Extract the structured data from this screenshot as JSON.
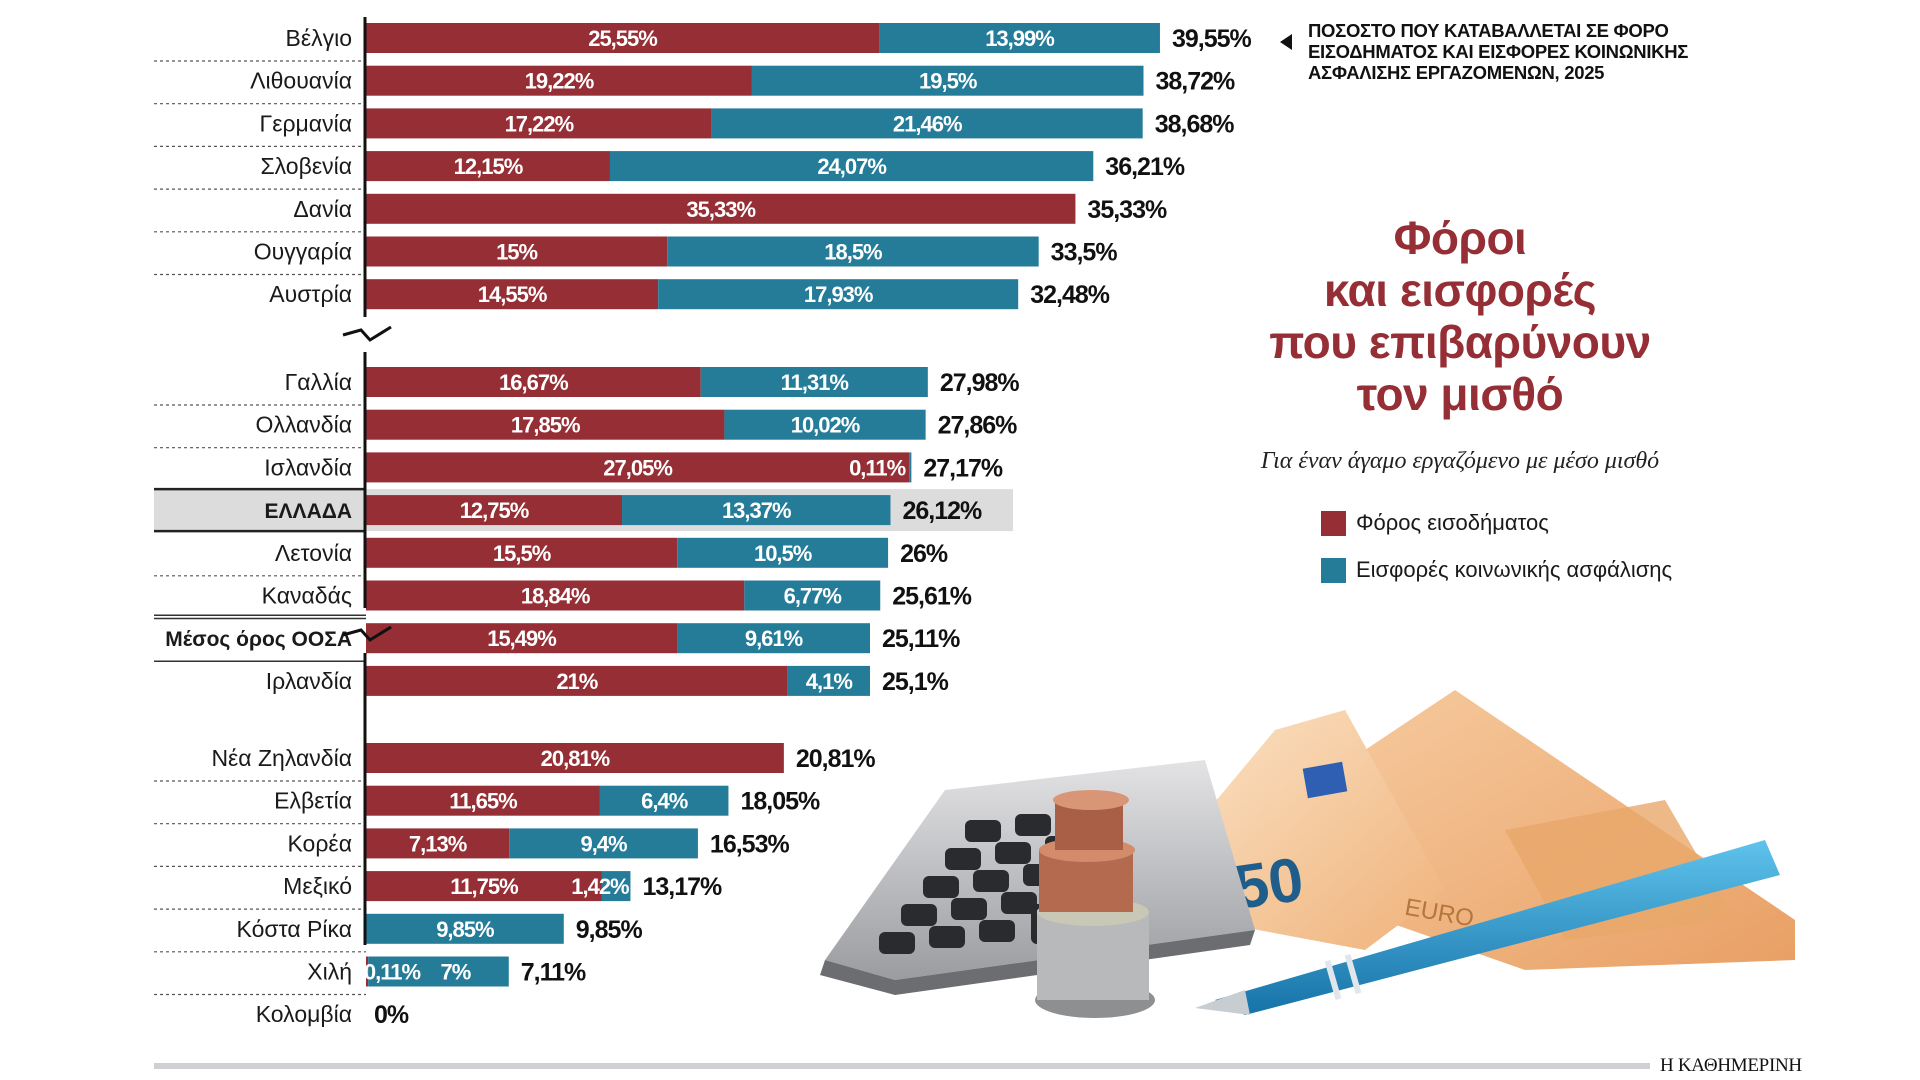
{
  "header": {
    "note_text": "ΠΟΣΟΣΤΟ ΠΟΥ ΚΑΤΑΒΑΛΛΕΤΑΙ ΣΕ ΦΟΡΟ ΕΙΣΟΔΗΜΑΤΟΣ ΚΑΙ ΕΙΣΦΟΡΕΣ ΚΟΙΝΩΝΙΚΗΣ ΑΣΦΑΛΙΣΗΣ ΕΡΓΑΖΟΜΕΝΩΝ, 2025",
    "title_lines": [
      "Φόροι",
      "και εισφορές",
      "που επιβαρύνουν",
      "τον μισθό"
    ],
    "subtitle": "Για έναν άγαμο εργαζόμενο με μέσο μισθό"
  },
  "footer": {
    "logo": "Η ΚΑΘΗΜΕΡΙΝΗ"
  },
  "colors": {
    "income_tax": "#962e35",
    "social_security": "#247c99",
    "highlight": "#dcdcdc",
    "text": "#1a1a1a"
  },
  "chart_data": {
    "type": "bar",
    "orientation": "horizontal",
    "stacked": true,
    "title": "Φόροι και εισφορές που επιβαρύνουν τον μισθό",
    "subtitle": "Για έναν άγαμο εργαζόμενο με μέσο μισθό",
    "unit": "%",
    "legend": {
      "position": "right",
      "entries": [
        {
          "name": "Φόρος εισοδήματος",
          "color": "#962e35"
        },
        {
          "name": "Εισφορές κοινωνικής ασφάλισης",
          "color": "#247c99"
        }
      ]
    },
    "groups": [
      {
        "rows": [
          {
            "country": "Βέλγιο",
            "income_tax": 25.55,
            "income_label": "25,55%",
            "social": 13.99,
            "social_label": "13,99%",
            "total": 39.55,
            "total_label": "39,55%"
          },
          {
            "country": "Λιθουανία",
            "income_tax": 19.22,
            "income_label": "19,22%",
            "social": 19.5,
            "social_label": "19,5%",
            "total": 38.72,
            "total_label": "38,72%"
          },
          {
            "country": "Γερμανία",
            "income_tax": 17.22,
            "income_label": "17,22%",
            "social": 21.46,
            "social_label": "21,46%",
            "total": 38.68,
            "total_label": "38,68%"
          },
          {
            "country": "Σλοβενία",
            "income_tax": 12.15,
            "income_label": "12,15%",
            "social": 24.07,
            "social_label": "24,07%",
            "total": 36.21,
            "total_label": "36,21%"
          },
          {
            "country": "Δανία",
            "income_tax": 35.33,
            "income_label": "35,33%",
            "social": 0,
            "social_label": "",
            "total": 35.33,
            "total_label": "35,33%"
          },
          {
            "country": "Ουγγαρία",
            "income_tax": 15,
            "income_label": "15%",
            "social": 18.5,
            "social_label": "18,5%",
            "total": 33.5,
            "total_label": "33,5%"
          },
          {
            "country": "Αυστρία",
            "income_tax": 14.55,
            "income_label": "14,55%",
            "social": 17.93,
            "social_label": "17,93%",
            "total": 32.48,
            "total_label": "32,48%"
          }
        ]
      },
      {
        "rows": [
          {
            "country": "Γαλλία",
            "income_tax": 16.67,
            "income_label": "16,67%",
            "social": 11.31,
            "social_label": "11,31%",
            "total": 27.98,
            "total_label": "27,98%"
          },
          {
            "country": "Ολλανδία",
            "income_tax": 17.85,
            "income_label": "17,85%",
            "social": 10.02,
            "social_label": "10,02%",
            "total": 27.86,
            "total_label": "27,86%"
          },
          {
            "country": "Ισλανδία",
            "income_tax": 27.05,
            "income_label": "27,05%",
            "social": 0.11,
            "social_label": "0,11%",
            "total": 27.17,
            "total_label": "27,17%"
          },
          {
            "country": "ΕΛΛΑΔΑ",
            "income_tax": 12.75,
            "income_label": "12,75%",
            "social": 13.37,
            "social_label": "13,37%",
            "total": 26.12,
            "total_label": "26,12%",
            "highlight": true
          },
          {
            "country": "Λετονία",
            "income_tax": 15.5,
            "income_label": "15,5%",
            "social": 10.5,
            "social_label": "10,5%",
            "total": 26,
            "total_label": "26%"
          },
          {
            "country": "Καναδάς",
            "income_tax": 18.84,
            "income_label": "18,84%",
            "social": 6.77,
            "social_label": "6,77%",
            "total": 25.61,
            "total_label": "25,61%"
          },
          {
            "country": "Μέσος όρος ΟΟΣΑ",
            "income_tax": 15.49,
            "income_label": "15,49%",
            "social": 9.61,
            "social_label": "9,61%",
            "total": 25.11,
            "total_label": "25,11%",
            "bold": true
          },
          {
            "country": "Ιρλανδία",
            "income_tax": 21,
            "income_label": "21%",
            "social": 4.1,
            "social_label": "4,1%",
            "total": 25.1,
            "total_label": "25,1%"
          }
        ]
      },
      {
        "rows": [
          {
            "country": "Νέα Ζηλανδία",
            "income_tax": 20.81,
            "income_label": "20,81%",
            "social": 0,
            "social_label": "",
            "total": 20.81,
            "total_label": "20,81%"
          },
          {
            "country": "Ελβετία",
            "income_tax": 11.65,
            "income_label": "11,65%",
            "social": 6.4,
            "social_label": "6,4%",
            "total": 18.05,
            "total_label": "18,05%"
          },
          {
            "country": "Κορέα",
            "income_tax": 7.13,
            "income_label": "7,13%",
            "social": 9.4,
            "social_label": "9,4%",
            "total": 16.53,
            "total_label": "16,53%"
          },
          {
            "country": "Μεξικό",
            "income_tax": 11.75,
            "income_label": "11,75%",
            "social": 1.42,
            "social_label": "1,42%",
            "total": 13.17,
            "total_label": "13,17%"
          },
          {
            "country": "Κόστα Ρίκα",
            "income_tax": 0,
            "income_label": "",
            "social": 9.85,
            "social_label": "9,85%",
            "total": 9.85,
            "total_label": "9,85%"
          },
          {
            "country": "Χιλή",
            "income_tax": 0.11,
            "income_label": "0,11%",
            "social": 7,
            "social_label": "7%",
            "total": 7.11,
            "total_label": "7,11%"
          },
          {
            "country": "Κολομβία",
            "income_tax": 0,
            "income_label": "",
            "social": 0,
            "social_label": "",
            "total": 0,
            "total_label": "0%"
          }
        ]
      }
    ]
  }
}
